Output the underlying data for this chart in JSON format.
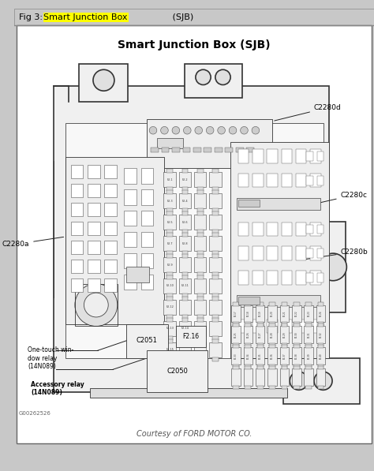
{
  "title": "Smart Junction Box (SJB)",
  "header_plain1": "Fig 3: ",
  "header_highlight": "Smart Junction Box",
  "header_plain2": " (SJB)",
  "footer_text": "Courtesy of FORD MOTOR CO.",
  "figure_id": "G00262526",
  "bg_color_outer": "#c8c8c8",
  "bg_color_header": "#c8c8c8",
  "bg_color_content": "#ffffff",
  "pcb_fill": "#f5f5f5",
  "pcb_edge": "#333333",
  "ann_color": "#222222",
  "label_C2280a": "C2280a",
  "label_C2280b": "C2280b",
  "label_C2280c": "C2280c",
  "label_C2280d": "C2280d",
  "label_C2051": "C2051",
  "label_C2050": "C2050",
  "label_F216": "F2.16",
  "label_relay1": "One-touch win-\ndow relay\n(14N089)",
  "label_relay2": "Accessory relay\n(14N089)"
}
